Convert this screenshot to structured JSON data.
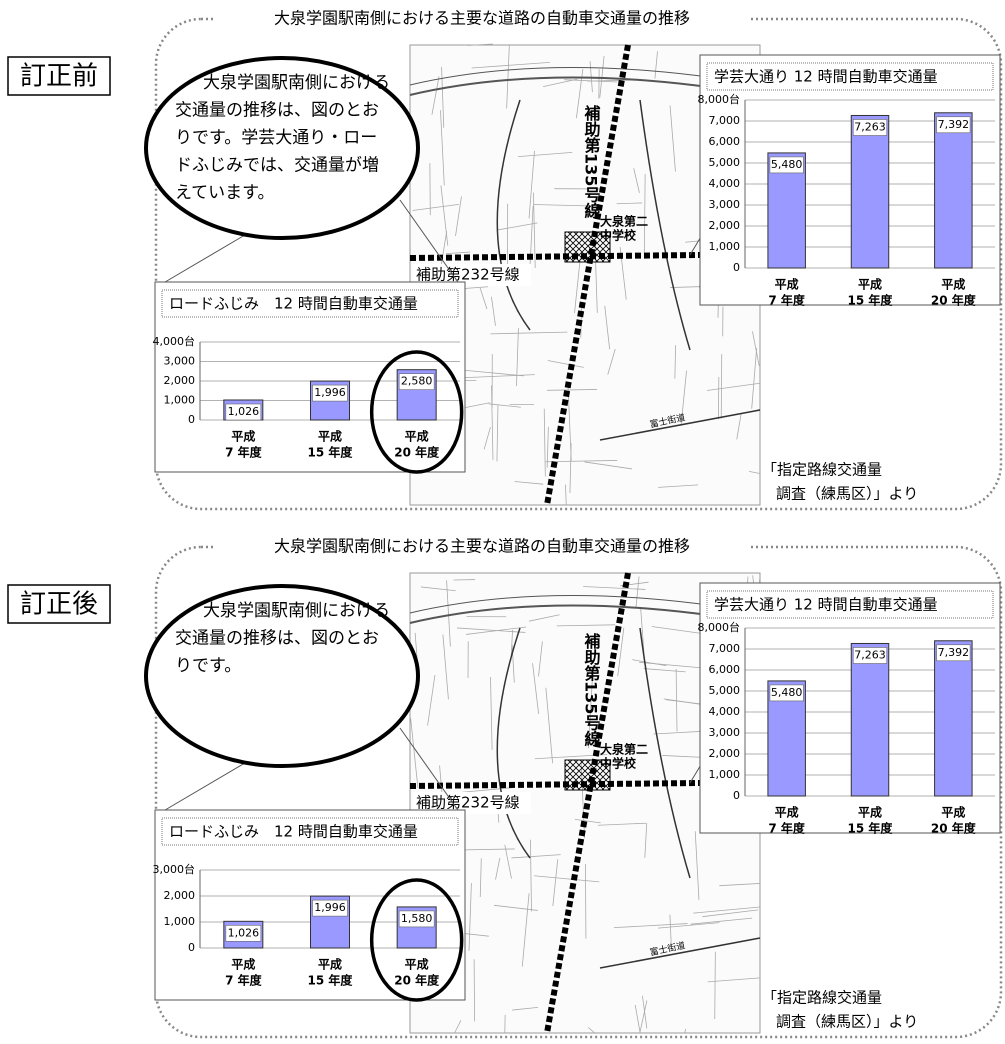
{
  "panels": [
    {
      "label": "訂正前",
      "title": "大泉学園駅南側における主要な道路の自動車交通量の推移",
      "body_lines": [
        "大泉学園駅南側における",
        "交通量の推移は、図のとお",
        "りです。学芸大通り・ロー",
        "ドふじみでは、交通量が増",
        "えています。"
      ],
      "map_labels": {
        "route135": "補助第135号線",
        "route232": "補助第232号線",
        "school": [
          "大泉第二",
          "中学校"
        ],
        "fuji": "富士街道"
      },
      "source": [
        "「指定路線交通量",
        "調査（練馬区）」より"
      ]
    },
    {
      "label": "訂正後",
      "title": "大泉学園駅南側における主要な道路の自動車交通量の推移",
      "body_lines": [
        "大泉学園駅南側における",
        "交通量の推移は、図のとお",
        "りです。"
      ],
      "map_labels": {
        "route135": "補助第135号線",
        "route232": "補助第232号線",
        "school": [
          "大泉第二",
          "中学校"
        ],
        "fuji": "富士街道"
      },
      "source": [
        "「指定路線交通量",
        "調査（練馬区）」より"
      ]
    }
  ],
  "chart_data": [
    {
      "type": "bar",
      "title": "学芸大通り 12 時間自動車交通量",
      "categories": [
        [
          "平成",
          "7 年度"
        ],
        [
          "平成",
          "15 年度"
        ],
        [
          "平成",
          "20 年度"
        ]
      ],
      "values": [
        5480,
        7263,
        7392
      ],
      "value_labels": [
        "5,480",
        "7,263",
        "7,392"
      ],
      "ylim": [
        0,
        8000
      ],
      "yticks": [
        0,
        {
          "value": 1000,
          "label": "1,000"
        },
        {
          "value": 2000,
          "label": "2,000"
        },
        {
          "value": 3000,
          "label": "3,000"
        },
        {
          "value": 4000,
          "label": "4,000"
        },
        {
          "value": 5000,
          "label": "5,000"
        },
        {
          "value": 6000,
          "label": "6,000"
        },
        {
          "value": 7000,
          "label": "7,000"
        },
        {
          "value": 8000,
          "label": "8,000台"
        }
      ],
      "color": "#9999ff",
      "grid": true
    },
    {
      "type": "bar",
      "title": "ロードふじみ　12 時間自動車交通量",
      "categories": [
        [
          "平成",
          "7 年度"
        ],
        [
          "平成",
          "15 年度"
        ],
        [
          "平成",
          "20 年度"
        ]
      ],
      "values": [
        1026,
        1996,
        2580
      ],
      "value_labels": [
        "1,026",
        "1,996",
        "2,580"
      ],
      "ylim": [
        0,
        4000
      ],
      "yticks": [
        0,
        {
          "value": 1000,
          "label": "1,000"
        },
        {
          "value": 2000,
          "label": "2,000"
        },
        {
          "value": 3000,
          "label": "3,000"
        },
        {
          "value": 4000,
          "label": "4,000台"
        }
      ],
      "color": "#9999ff",
      "grid": true
    },
    {
      "type": "bar",
      "title": "学芸大通り 12 時間自動車交通量",
      "categories": [
        [
          "平成",
          "7 年度"
        ],
        [
          "平成",
          "15 年度"
        ],
        [
          "平成",
          "20 年度"
        ]
      ],
      "values": [
        5480,
        7263,
        7392
      ],
      "value_labels": [
        "5,480",
        "7,263",
        "7,392"
      ],
      "ylim": [
        0,
        8000
      ],
      "yticks": [
        0,
        {
          "value": 1000,
          "label": "1,000"
        },
        {
          "value": 2000,
          "label": "2,000"
        },
        {
          "value": 3000,
          "label": "3,000"
        },
        {
          "value": 4000,
          "label": "4,000"
        },
        {
          "value": 5000,
          "label": "5,000"
        },
        {
          "value": 6000,
          "label": "6,000"
        },
        {
          "value": 7000,
          "label": "7,000"
        },
        {
          "value": 8000,
          "label": "8,000台"
        }
      ],
      "color": "#9999ff",
      "grid": true
    },
    {
      "type": "bar",
      "title": "ロードふじみ　12 時間自動車交通量",
      "categories": [
        [
          "平成",
          "7 年度"
        ],
        [
          "平成",
          "15 年度"
        ],
        [
          "平成",
          "20 年度"
        ]
      ],
      "values": [
        1026,
        1996,
        1580
      ],
      "value_labels": [
        "1,026",
        "1,996",
        "1,580"
      ],
      "ylim": [
        0,
        3000
      ],
      "yticks": [
        0,
        {
          "value": 1000,
          "label": "1,000"
        },
        {
          "value": 2000,
          "label": "2,000"
        },
        {
          "value": 3000,
          "label": "3,000台"
        }
      ],
      "color": "#9999ff",
      "grid": true
    }
  ]
}
